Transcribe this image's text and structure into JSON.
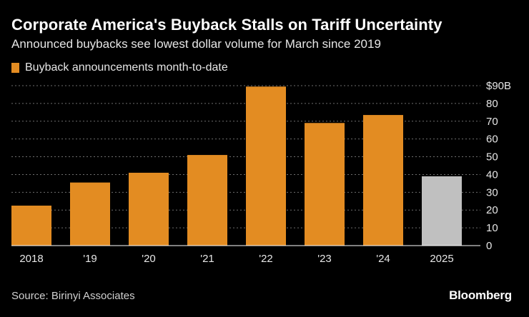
{
  "header": {
    "title": "Corporate America's Buyback Stalls on Tariff Uncertainty",
    "subtitle": "Announced buybacks see lowest dollar volume for March since 2019"
  },
  "legend": {
    "label": "Buyback announcements month-to-date"
  },
  "footer": {
    "source": "Source: Birinyi Associates",
    "brand": "Bloomberg"
  },
  "colors": {
    "background": "#000000",
    "bar": "#e38c22",
    "highlight": "#c0c0c0",
    "grid": "#6e6e6e"
  },
  "chart_data": {
    "type": "bar",
    "categories": [
      "2018",
      "'19",
      "'20",
      "'21",
      "'22",
      "'23",
      "'24",
      "2025"
    ],
    "series": [
      {
        "name": "Buyback announcements month-to-date",
        "values": [
          22.5,
          35.5,
          41,
          51,
          89.5,
          69,
          73.5,
          39
        ]
      }
    ],
    "highlight_category": "2025",
    "ylim": [
      0,
      90
    ],
    "yticks": [
      "$90B",
      "80",
      "70",
      "60",
      "50",
      "40",
      "30",
      "20",
      "10",
      "0"
    ],
    "grid": true,
    "legend_position": "top-left",
    "y_axis_position": "right"
  }
}
